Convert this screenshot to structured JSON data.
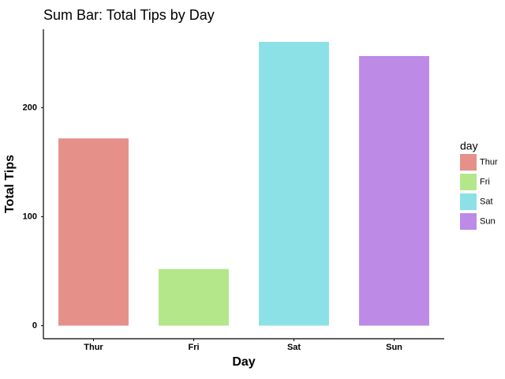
{
  "chart_data": {
    "type": "bar",
    "title": "Sum Bar: Total Tips by Day",
    "xlabel": "Day",
    "ylabel": "Total Tips",
    "categories": [
      "Thur",
      "Fri",
      "Sat",
      "Sun"
    ],
    "values": [
      171.83,
      51.96,
      260.4,
      247.39
    ],
    "colors": [
      "#E6908A",
      "#B3E78A",
      "#8CE1E6",
      "#BD8AE6"
    ],
    "ylim": [
      -12,
      272
    ],
    "yticks": [
      0,
      100,
      200
    ],
    "grid": false,
    "legend": {
      "title": "day",
      "position": "right",
      "entries": [
        "Thur",
        "Fri",
        "Sat",
        "Sun"
      ]
    }
  }
}
